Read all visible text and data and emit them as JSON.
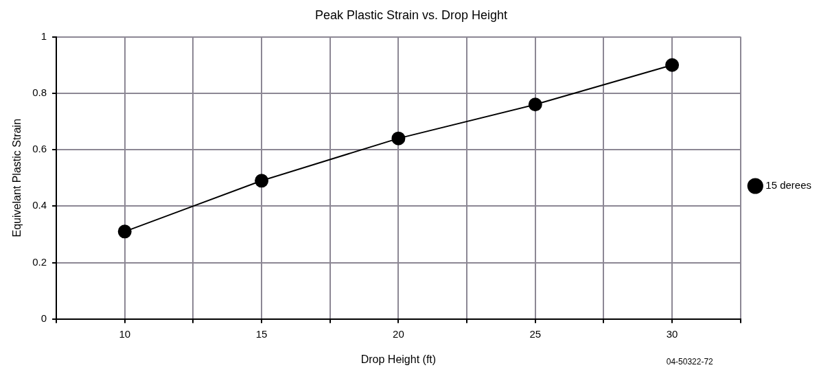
{
  "chart_data": {
    "type": "line",
    "title": "Peak Plastic Strain vs. Drop Height",
    "xlabel": "Drop Height (ft)",
    "ylabel": "Equivelant Plastic Strain",
    "x": [
      10,
      15,
      20,
      25,
      30
    ],
    "series": [
      {
        "name": "15 derees",
        "color": "#000000",
        "values": [
          0.31,
          0.49,
          0.64,
          0.76,
          0.9
        ]
      }
    ],
    "xlim": [
      7.5,
      32.5
    ],
    "xticks": [
      {
        "value": 7.5,
        "label": null
      },
      10,
      {
        "value": 12.5,
        "label": null
      },
      15,
      {
        "value": 17.5,
        "label": null
      },
      20,
      {
        "value": 22.5,
        "label": null
      },
      25,
      {
        "value": 27.5,
        "label": null
      },
      30,
      {
        "value": 32.5,
        "label": null
      }
    ],
    "ylim": [
      0,
      1
    ],
    "yticks": [
      0,
      0.2,
      0.4,
      0.6,
      0.8,
      1
    ],
    "grid": true,
    "legend": "right",
    "marker": "circle",
    "line_style": "solid",
    "annotations": [
      "04-50322-72"
    ]
  }
}
